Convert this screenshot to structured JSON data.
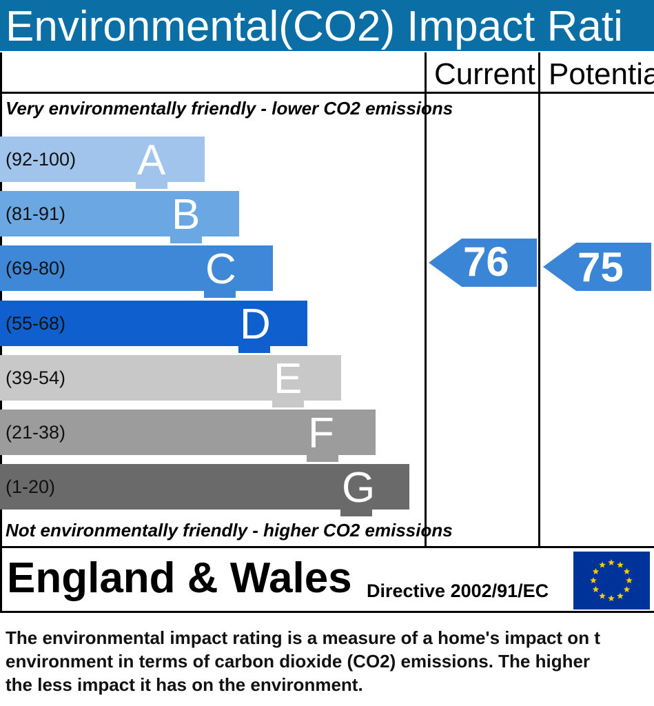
{
  "title": "Environmental(CO2) Impact Rati",
  "columns": {
    "current": "Current",
    "potential": "Potentia"
  },
  "captions": {
    "top": "Very environmentally friendly - lower CO2 emissions",
    "bottom": "Not environmentally friendly - higher CO2 emissions"
  },
  "footer": {
    "region": "England & Wales",
    "directive": "Directive 2002/91/EC",
    "flag_icon": "eu-flag-icon"
  },
  "description": [
    "The environmental impact rating is a measure of a home's impact on t",
    "environment in terms of carbon dioxide (CO2) emissions. The higher",
    "the less impact it has on the environment."
  ],
  "chart_data": {
    "type": "bar",
    "categories": [
      "A",
      "B",
      "C",
      "D",
      "E",
      "F",
      "G"
    ],
    "ranges": [
      "(92-100)",
      "(81-91)",
      "(69-80)",
      "(55-68)",
      "(39-54)",
      "(21-38)",
      "(1-20)"
    ],
    "colors": [
      "#a0c4ec",
      "#6aa7e3",
      "#3f88d8",
      "#0f5fcf",
      "#c8c8c8",
      "#9c9c9c",
      "#6a6a6a"
    ],
    "current": 76,
    "potential": 75,
    "arrow_color": "#3a85d6"
  }
}
